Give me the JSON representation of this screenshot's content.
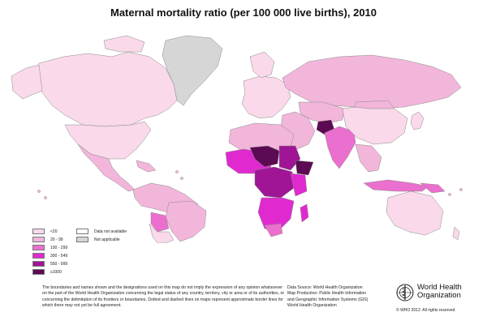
{
  "title": "Maternal mortality ratio (per 100 000 live births), 2010",
  "colors": {
    "lt20": "#f9d9ea",
    "r20_99": "#f2b6da",
    "r100_299": "#eb6fce",
    "r300_549": "#e02ad0",
    "r550_999": "#a01496",
    "ge1000": "#5c0a54",
    "not_available": "#ffffff",
    "not_applicable": "#d6d6d6",
    "border": "#8a8a8a",
    "ocean": "#ffffff"
  },
  "legend": {
    "classes": [
      {
        "label": "<20",
        "color_key": "lt20"
      },
      {
        "label": "20 - 99",
        "color_key": "r20_99"
      },
      {
        "label": "100 - 299",
        "color_key": "r100_299"
      },
      {
        "label": "300 - 549",
        "color_key": "r300_549"
      },
      {
        "label": "550 - 999",
        "color_key": "r550_999"
      },
      {
        "label": "≥1000",
        "color_key": "ge1000"
      }
    ],
    "extra": [
      {
        "label": "Data not available",
        "color_key": "not_available"
      },
      {
        "label": "Not applicable",
        "color_key": "not_applicable"
      }
    ]
  },
  "disclaimer": "The boundaries and names shown and the designations used on this map do not imply the expression of any opinion whatsoever on the part of the World Health Organization concerning the legal status of any country, territory, city or area or of its authorities, or concerning the delimitation of its frontiers or boundaries.  Dotted and dashed lines on maps represent approximate border lines for which there may not yet be full agreement.",
  "source": {
    "line1": "Data Source: World Health Organization",
    "line2": "Map Production: Public Health Information",
    "line3": "and Geographic Information Systems (GIS)",
    "line4": "World Health Organization"
  },
  "who": {
    "name_line1": "World Health",
    "name_line2": "Organization",
    "copyright": "© WHO 2012. All rights reserved.",
    "logo_icon": "who-emblem-icon"
  }
}
